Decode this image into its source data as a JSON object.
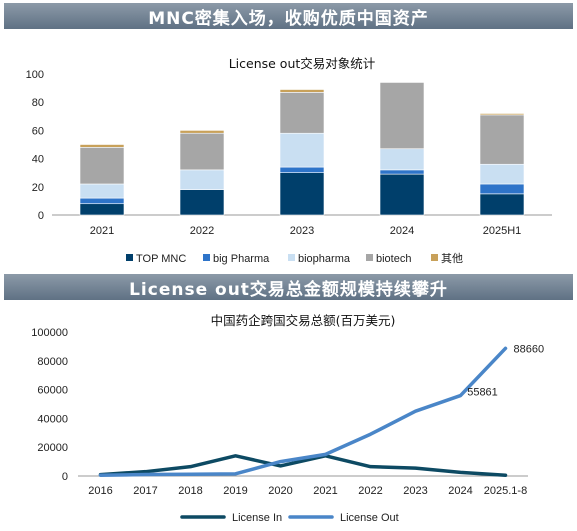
{
  "banners": {
    "top": "MNC密集入场，收购优质中国资产",
    "bottom": "License out交易总金额规模持续攀升"
  },
  "colors": {
    "top_mnc": "#003f6b",
    "big_pharma": "#2e74c9",
    "biopharma": "#c9dff2",
    "biotech": "#a6a6a6",
    "other": "#c8a15a",
    "license_in": "#0d4a63",
    "license_out": "#4a86c8"
  },
  "chart_data": [
    {
      "type": "bar",
      "stacked": true,
      "title": "License out交易对象统计",
      "categories": [
        "2021",
        "2022",
        "2023",
        "2024",
        "2025H1"
      ],
      "ylim": [
        0,
        100
      ],
      "yticks": [
        0,
        20,
        40,
        60,
        80,
        100
      ],
      "legend_position": "bottom",
      "series": [
        {
          "name": "TOP MNC",
          "color_key": "top_mnc",
          "values": [
            8,
            18,
            30,
            29,
            15
          ]
        },
        {
          "name": "big Pharma",
          "color_key": "big_pharma",
          "values": [
            4,
            0,
            4,
            3,
            7
          ]
        },
        {
          "name": "biopharma",
          "color_key": "biopharma",
          "values": [
            10,
            14,
            24,
            15,
            14
          ]
        },
        {
          "name": "biotech",
          "color_key": "biotech",
          "values": [
            26,
            26,
            29,
            47,
            35
          ]
        },
        {
          "name": "其他",
          "color_key": "other",
          "values": [
            2,
            2,
            2,
            0,
            1
          ]
        }
      ]
    },
    {
      "type": "line",
      "title": "中国药企跨国交易总额(百万美元)",
      "categories": [
        "2016",
        "2017",
        "2018",
        "2019",
        "2020",
        "2021",
        "2022",
        "2023",
        "2024",
        "2025.1-8"
      ],
      "ylim": [
        0,
        100000
      ],
      "yticks": [
        0,
        20000,
        40000,
        60000,
        80000,
        100000
      ],
      "legend_position": "bottom",
      "series": [
        {
          "name": "License In",
          "color_key": "license_in",
          "values": [
            1000,
            3000,
            6500,
            14000,
            7000,
            14000,
            6500,
            5500,
            2500,
            500
          ]
        },
        {
          "name": "License Out",
          "color_key": "license_out",
          "values": [
            500,
            1000,
            1200,
            1500,
            10000,
            15000,
            29000,
            45000,
            55861,
            88660
          ]
        }
      ],
      "annotations": [
        {
          "series": "License Out",
          "category": "2024",
          "label": "55861"
        },
        {
          "series": "License Out",
          "category": "2025.1-8",
          "label": "88660"
        }
      ]
    }
  ]
}
